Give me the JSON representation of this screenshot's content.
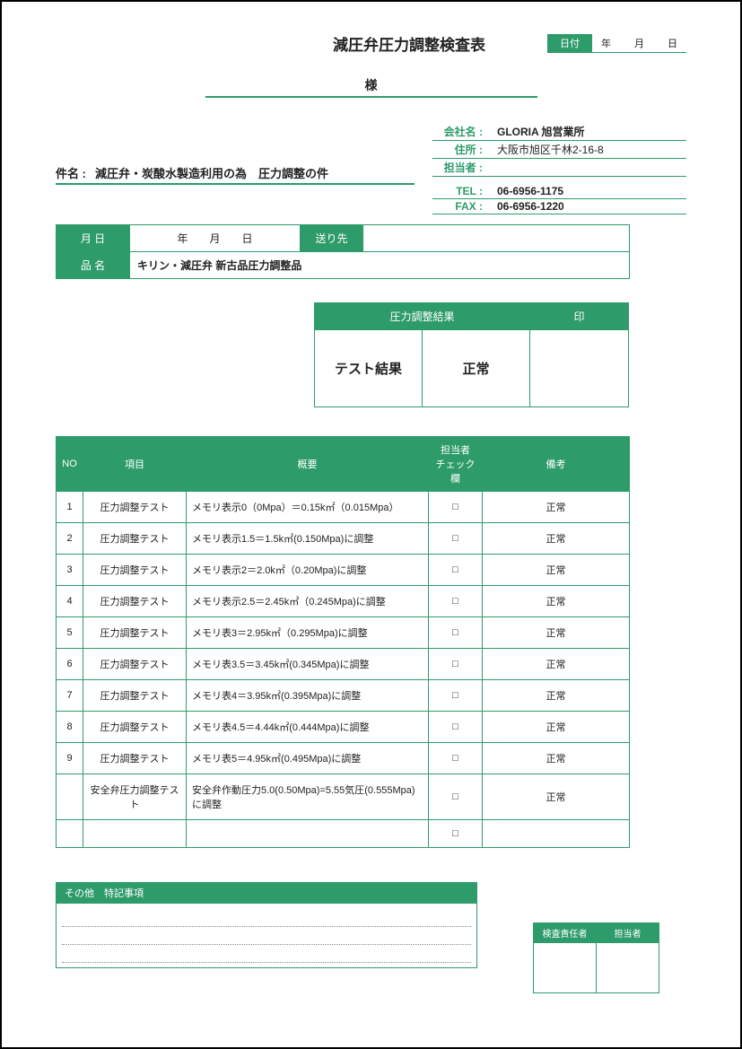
{
  "date": {
    "label": "日付",
    "year": "年",
    "month": "月",
    "day": "日"
  },
  "title": "減圧弁圧力調整検査表",
  "sama": "様",
  "company": {
    "name_label": "会社名 :",
    "name": "GLORIA 旭営業所",
    "addr_label": "住所 :",
    "addr": "大阪市旭区千林2-16-8",
    "person_label": "担当者 :",
    "person": "",
    "tel_label": "TEL :",
    "tel": "06-6956-1175",
    "fax_label": "FAX :",
    "fax": "06-6956-1220"
  },
  "subject": {
    "label": "件名 :",
    "text": "減圧弁・炭酸水製造利用の為　圧力調整の件"
  },
  "meta": {
    "date_label": "月 日",
    "date_val": "年　　月　　日",
    "sendto_label": "送り先",
    "sendto_val": "",
    "product_label": "品 名",
    "product_val": "キリン・減圧弁 新古品圧力調整品"
  },
  "result": {
    "header": "圧力調整結果",
    "seal": "印",
    "test_label": "テスト結果",
    "status": "正常"
  },
  "cols": {
    "no": "NO",
    "item": "項目",
    "summary": "概要",
    "check": "担当者\nチェック欄",
    "remark": "備考"
  },
  "rows": [
    {
      "no": "1",
      "item": "圧力調整テスト",
      "summary": "メモリ表示0（0Mpa）＝0.15k㎡（0.015Mpa）",
      "remark": "正常"
    },
    {
      "no": "2",
      "item": "圧力調整テスト",
      "summary": "メモリ表示1.5＝1.5k㎡(0.150Mpa)に調整",
      "remark": "正常"
    },
    {
      "no": "3",
      "item": "圧力調整テスト",
      "summary": "メモリ表示2＝2.0k㎡（0.20Mpa)に調整",
      "remark": "正常"
    },
    {
      "no": "4",
      "item": "圧力調整テスト",
      "summary": "メモリ表示2.5＝2.45k㎡（0.245Mpa)に調整",
      "remark": "正常"
    },
    {
      "no": "5",
      "item": "圧力調整テスト",
      "summary": "メモリ表3＝2.95k㎡（0.295Mpa)に調整",
      "remark": "正常"
    },
    {
      "no": "6",
      "item": "圧力調整テスト",
      "summary": "メモリ表3.5＝3.45k㎡(0.345Mpa)に調整",
      "remark": "正常"
    },
    {
      "no": "7",
      "item": "圧力調整テスト",
      "summary": "メモリ表4＝3.95k㎡(0.395Mpa)に調整",
      "remark": "正常"
    },
    {
      "no": "8",
      "item": "圧力調整テスト",
      "summary": "メモリ表4.5＝4.44k㎡(0.444Mpa)に調整",
      "remark": "正常"
    },
    {
      "no": "9",
      "item": "圧力調整テスト",
      "summary": "メモリ表5＝4.95k㎡(0.495Mpa)に調整",
      "remark": "正常"
    },
    {
      "no": "",
      "item": "安全弁圧力調整テスト",
      "summary": "安全弁作動圧力5.0(0.50Mpa)=5.55気圧(0.555Mpa)に調整",
      "remark": "正常"
    },
    {
      "no": "",
      "item": "",
      "summary": "",
      "remark": ""
    }
  ],
  "checkbox": "□",
  "notes_label": "その他　特記事項",
  "sign": {
    "inspector": "検査責任者",
    "person": "担当者"
  },
  "colors": {
    "brand": "#2e9b6a",
    "text": "#222222"
  }
}
